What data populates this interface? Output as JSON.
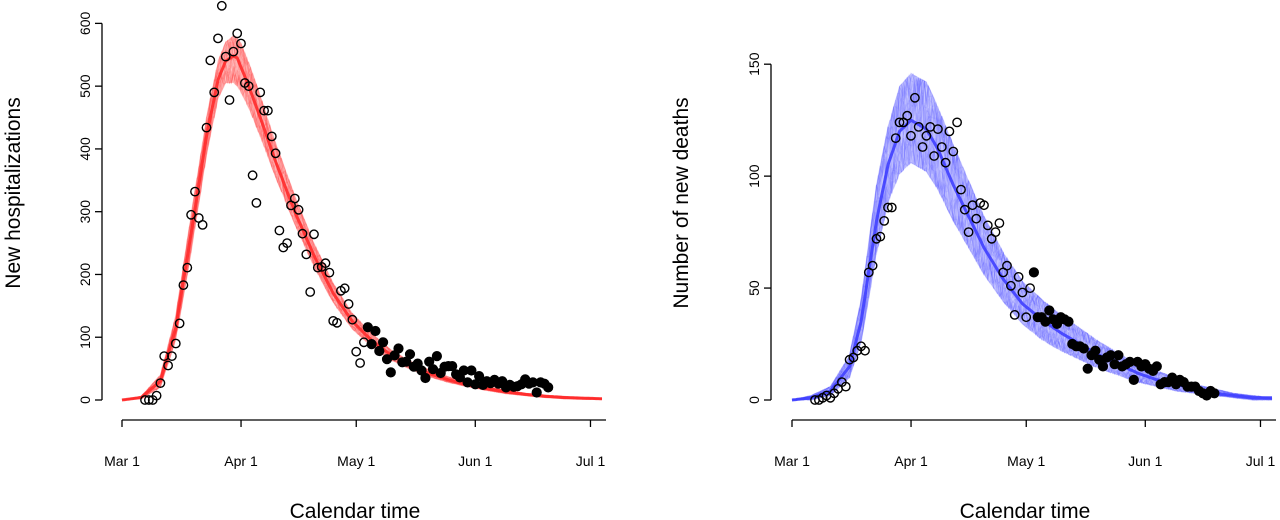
{
  "chart_data": [
    {
      "type": "scatter",
      "title": "",
      "xlabel": "Calendar time",
      "ylabel": "New hospitalizations",
      "x_ticks": [
        "Mar 1",
        "Apr 1",
        "May 1",
        "Jun 1",
        "Jul 1"
      ],
      "x_tick_days": [
        0,
        31,
        61,
        92,
        122
      ],
      "y_ticks": [
        0,
        100,
        200,
        300,
        400,
        500,
        600
      ],
      "xlim_days": [
        0,
        125
      ],
      "ylim": [
        0,
        630
      ],
      "band_color": "#ff2a2a",
      "band": {
        "x": [
          0,
          5,
          10,
          14,
          18,
          22,
          25,
          27,
          29,
          30,
          31,
          33,
          36,
          40,
          45,
          50,
          55,
          60,
          65,
          70,
          75,
          80,
          85,
          90,
          95,
          100,
          105,
          110,
          115,
          120,
          125
        ],
        "mean": [
          0,
          4,
          30,
          115,
          265,
          420,
          510,
          540,
          548,
          545,
          530,
          500,
          450,
          380,
          300,
          230,
          170,
          125,
          95,
          72,
          55,
          42,
          32,
          24,
          18,
          13,
          9,
          6,
          4,
          3,
          2
        ],
        "lower": [
          0,
          2,
          20,
          95,
          235,
          390,
          480,
          505,
          505,
          500,
          490,
          465,
          420,
          355,
          280,
          212,
          155,
          113,
          85,
          64,
          49,
          37,
          28,
          21,
          15,
          10,
          7,
          4,
          2,
          1,
          1
        ],
        "upper": [
          0,
          6,
          40,
          135,
          295,
          450,
          540,
          570,
          580,
          578,
          568,
          538,
          485,
          410,
          325,
          250,
          186,
          138,
          106,
          80,
          62,
          48,
          37,
          28,
          21,
          16,
          11,
          8,
          6,
          4,
          3
        ]
      },
      "series": [
        {
          "name": "",
          "marker": "open",
          "points": [
            [
              6,
              0
            ],
            [
              7,
              0
            ],
            [
              8,
              0
            ],
            [
              9,
              7
            ],
            [
              10,
              27
            ],
            [
              11,
              70
            ],
            [
              12,
              55
            ],
            [
              13,
              70
            ],
            [
              14,
              90
            ],
            [
              15,
              122
            ],
            [
              16,
              183
            ],
            [
              17,
              211
            ],
            [
              18,
              295
            ],
            [
              19,
              332
            ],
            [
              20,
              290
            ],
            [
              21,
              279
            ],
            [
              22,
              434
            ],
            [
              23,
              541
            ],
            [
              24,
              490
            ],
            [
              25,
              576
            ],
            [
              26,
              628
            ],
            [
              27,
              547
            ],
            [
              28,
              478
            ],
            [
              29,
              555
            ],
            [
              30,
              584
            ],
            [
              31,
              568
            ],
            [
              32,
              505
            ],
            [
              33,
              500
            ],
            [
              34,
              358
            ],
            [
              35,
              314
            ],
            [
              36,
              490
            ],
            [
              37,
              461
            ],
            [
              38,
              461
            ],
            [
              39,
              420
            ],
            [
              40,
              393
            ],
            [
              41,
              270
            ],
            [
              42,
              243
            ],
            [
              43,
              250
            ],
            [
              44,
              310
            ],
            [
              45,
              321
            ],
            [
              46,
              303
            ],
            [
              47,
              265
            ],
            [
              48,
              232
            ],
            [
              49,
              172
            ],
            [
              50,
              264
            ],
            [
              51,
              211
            ],
            [
              52,
              212
            ],
            [
              53,
              218
            ],
            [
              54,
              203
            ],
            [
              55,
              126
            ],
            [
              56,
              123
            ],
            [
              57,
              174
            ],
            [
              58,
              178
            ],
            [
              59,
              153
            ],
            [
              60,
              128
            ],
            [
              61,
              77
            ],
            [
              62,
              59
            ],
            [
              63,
              92
            ]
          ]
        },
        {
          "name": "",
          "marker": "filled",
          "points": [
            [
              64,
              116
            ],
            [
              65,
              89
            ],
            [
              66,
              110
            ],
            [
              67,
              78
            ],
            [
              68,
              92
            ],
            [
              69,
              65
            ],
            [
              70,
              44
            ],
            [
              71,
              71
            ],
            [
              72,
              82
            ],
            [
              73,
              60
            ],
            [
              74,
              61
            ],
            [
              75,
              73
            ],
            [
              76,
              53
            ],
            [
              77,
              58
            ],
            [
              78,
              47
            ],
            [
              79,
              35
            ],
            [
              80,
              61
            ],
            [
              81,
              49
            ],
            [
              82,
              70
            ],
            [
              83,
              43
            ],
            [
              84,
              53
            ],
            [
              85,
              54
            ],
            [
              86,
              54
            ],
            [
              87,
              41
            ],
            [
              88,
              36
            ],
            [
              89,
              47
            ],
            [
              90,
              28
            ],
            [
              91,
              47
            ],
            [
              92,
              25
            ],
            [
              93,
              38
            ],
            [
              94,
              24
            ],
            [
              95,
              30
            ],
            [
              96,
              27
            ],
            [
              97,
              32
            ],
            [
              98,
              26
            ],
            [
              99,
              30
            ],
            [
              100,
              20
            ],
            [
              101,
              24
            ],
            [
              102,
              21
            ],
            [
              103,
              22
            ],
            [
              104,
              25
            ],
            [
              105,
              33
            ],
            [
              106,
              26
            ],
            [
              107,
              28
            ],
            [
              108,
              12
            ],
            [
              109,
              28
            ],
            [
              110,
              26
            ],
            [
              111,
              20
            ]
          ]
        }
      ]
    },
    {
      "type": "scatter",
      "title": "",
      "xlabel": "Calendar time",
      "ylabel": "Number of new deaths",
      "x_ticks": [
        "Mar 1",
        "Apr 1",
        "May 1",
        "Jun 1",
        "Jul 1"
      ],
      "x_tick_days": [
        0,
        31,
        61,
        92,
        122
      ],
      "y_ticks": [
        0,
        50,
        100,
        150
      ],
      "xlim_days": [
        0,
        125
      ],
      "ylim": [
        0,
        150
      ],
      "band_color": "#3f3fff",
      "band": {
        "x": [
          0,
          5,
          10,
          15,
          18,
          22,
          25,
          28,
          31,
          35,
          38,
          42,
          46,
          50,
          55,
          60,
          65,
          70,
          75,
          80,
          85,
          90,
          95,
          100,
          105,
          110,
          115,
          120,
          125
        ],
        "mean": [
          0,
          1,
          4,
          15,
          35,
          80,
          105,
          120,
          125,
          121,
          112,
          96,
          82,
          68,
          54,
          43,
          36,
          30,
          25,
          20,
          16,
          12,
          9,
          7,
          5,
          3,
          2,
          1,
          1
        ],
        "lower": [
          0,
          0,
          2,
          10,
          26,
          65,
          88,
          101,
          106,
          102,
          94,
          80,
          68,
          56,
          44,
          34,
          27,
          22,
          18,
          14,
          11,
          8,
          6,
          4,
          3,
          2,
          1,
          0,
          0
        ],
        "upper": [
          0,
          2,
          6,
          20,
          45,
          96,
          122,
          140,
          146,
          142,
          131,
          114,
          98,
          82,
          66,
          53,
          45,
          38,
          32,
          26,
          21,
          16,
          13,
          10,
          7,
          5,
          3,
          2,
          1
        ]
      },
      "series": [
        {
          "name": "",
          "marker": "open",
          "points": [
            [
              6,
              0
            ],
            [
              7,
              0
            ],
            [
              8,
              1
            ],
            [
              9,
              2
            ],
            [
              10,
              1
            ],
            [
              11,
              3
            ],
            [
              12,
              5
            ],
            [
              13,
              8
            ],
            [
              14,
              6
            ],
            [
              15,
              18
            ],
            [
              16,
              19
            ],
            [
              17,
              22
            ],
            [
              18,
              24
            ],
            [
              19,
              22
            ],
            [
              20,
              57
            ],
            [
              21,
              60
            ],
            [
              22,
              72
            ],
            [
              23,
              73
            ],
            [
              24,
              80
            ],
            [
              25,
              86
            ],
            [
              26,
              86
            ],
            [
              27,
              117
            ],
            [
              28,
              124
            ],
            [
              29,
              124
            ],
            [
              30,
              127
            ],
            [
              31,
              118
            ],
            [
              32,
              135
            ],
            [
              33,
              122
            ],
            [
              34,
              113
            ],
            [
              35,
              118
            ],
            [
              36,
              122
            ],
            [
              37,
              109
            ],
            [
              38,
              121
            ],
            [
              39,
              113
            ],
            [
              40,
              106
            ],
            [
              41,
              120
            ],
            [
              42,
              111
            ],
            [
              43,
              124
            ],
            [
              44,
              94
            ],
            [
              45,
              85
            ],
            [
              46,
              75
            ],
            [
              47,
              87
            ],
            [
              48,
              81
            ],
            [
              49,
              88
            ],
            [
              50,
              87
            ],
            [
              51,
              78
            ],
            [
              52,
              72
            ],
            [
              53,
              75
            ],
            [
              54,
              79
            ],
            [
              55,
              57
            ],
            [
              56,
              60
            ],
            [
              57,
              51
            ],
            [
              58,
              38
            ],
            [
              59,
              55
            ],
            [
              60,
              48
            ],
            [
              61,
              37
            ],
            [
              62,
              50
            ]
          ]
        },
        {
          "name": "",
          "marker": "filled",
          "points": [
            [
              63,
              57
            ],
            [
              64,
              37
            ],
            [
              65,
              37
            ],
            [
              66,
              35
            ],
            [
              67,
              40
            ],
            [
              68,
              36
            ],
            [
              69,
              34
            ],
            [
              70,
              37
            ],
            [
              71,
              36
            ],
            [
              72,
              35
            ],
            [
              73,
              25
            ],
            [
              74,
              24
            ],
            [
              75,
              24
            ],
            [
              76,
              23
            ],
            [
              77,
              14
            ],
            [
              78,
              20
            ],
            [
              79,
              22
            ],
            [
              80,
              18
            ],
            [
              81,
              15
            ],
            [
              82,
              19
            ],
            [
              83,
              20
            ],
            [
              84,
              16
            ],
            [
              85,
              20
            ],
            [
              86,
              15
            ],
            [
              87,
              16
            ],
            [
              88,
              17
            ],
            [
              89,
              9
            ],
            [
              90,
              17
            ],
            [
              91,
              15
            ],
            [
              92,
              16
            ],
            [
              93,
              14
            ],
            [
              94,
              13
            ],
            [
              95,
              15
            ],
            [
              96,
              7
            ],
            [
              97,
              8
            ],
            [
              98,
              8
            ],
            [
              99,
              10
            ],
            [
              100,
              7
            ],
            [
              101,
              9
            ],
            [
              102,
              8
            ],
            [
              103,
              6
            ],
            [
              104,
              6
            ],
            [
              105,
              6
            ],
            [
              106,
              4
            ],
            [
              107,
              3
            ],
            [
              108,
              2
            ],
            [
              109,
              4
            ],
            [
              110,
              3
            ]
          ]
        }
      ]
    }
  ]
}
